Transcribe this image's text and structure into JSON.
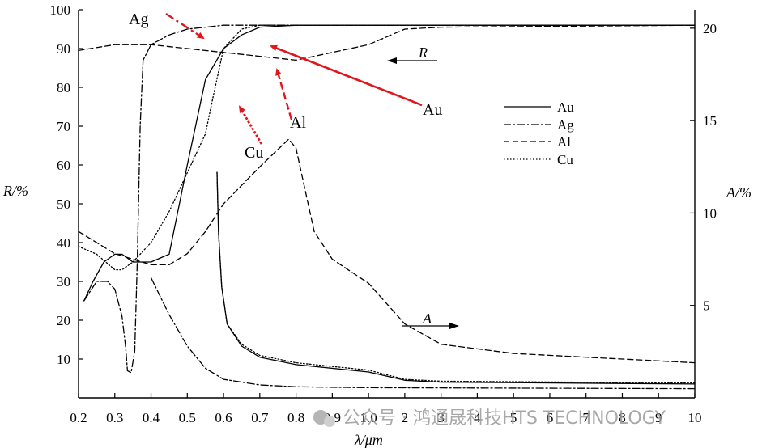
{
  "chart_data": {
    "type": "line",
    "xlabel": "λ/μm",
    "ylabel_left": "R/%",
    "ylabel_right": "A/%",
    "x_ticks": [
      "0.2",
      "0.3",
      "0.4",
      "0.5",
      "0.6",
      "0.7",
      "0.8",
      "0.9",
      "1.0",
      "2",
      "3",
      "4",
      "5",
      "6",
      "7",
      "8",
      "9",
      "10"
    ],
    "y_left_ticks": [
      "10",
      "20",
      "30",
      "40",
      "50",
      "60",
      "70",
      "80",
      "90",
      "100"
    ],
    "y_right_ticks": [
      "5",
      "10",
      "15",
      "20"
    ],
    "ylim_left": [
      0,
      100
    ],
    "ylim_right": [
      0,
      21
    ],
    "legend": {
      "placement": "right",
      "entries": [
        {
          "label": "Au",
          "style": "solid"
        },
        {
          "label": "Ag",
          "style": "dashdot"
        },
        {
          "label": "Al",
          "style": "dashed"
        },
        {
          "label": "Cu",
          "style": "dotted"
        }
      ]
    },
    "inline_labels": {
      "R": "R",
      "A": "A"
    },
    "annotations": [
      {
        "text": "Ag",
        "color": "#e0161d"
      },
      {
        "text": "Au",
        "color": "#e0161d"
      },
      {
        "text": "Al",
        "color": "#e0161d"
      },
      {
        "text": "Cu",
        "color": "#e0161d"
      }
    ],
    "series": [
      {
        "name": "Au",
        "kind": "R",
        "style": "solid",
        "points": [
          [
            0.215,
            25
          ],
          [
            0.24,
            30
          ],
          [
            0.27,
            35
          ],
          [
            0.3,
            37
          ],
          [
            0.32,
            37
          ],
          [
            0.35,
            35
          ],
          [
            0.4,
            35
          ],
          [
            0.45,
            37
          ],
          [
            0.5,
            60
          ],
          [
            0.55,
            82
          ],
          [
            0.6,
            90
          ],
          [
            0.65,
            93.5
          ],
          [
            0.7,
            95.5
          ],
          [
            0.8,
            96
          ],
          [
            1.0,
            96
          ],
          [
            10,
            96
          ]
        ]
      },
      {
        "name": "Ag",
        "kind": "R",
        "style": "dashdot",
        "points": [
          [
            0.215,
            25
          ],
          [
            0.25,
            30
          ],
          [
            0.28,
            30
          ],
          [
            0.3,
            28
          ],
          [
            0.32,
            21
          ],
          [
            0.33,
            13
          ],
          [
            0.335,
            7
          ],
          [
            0.345,
            6.5
          ],
          [
            0.355,
            12
          ],
          [
            0.362,
            35
          ],
          [
            0.37,
            70
          ],
          [
            0.378,
            87
          ],
          [
            0.4,
            91
          ],
          [
            0.45,
            93.5
          ],
          [
            0.5,
            95
          ],
          [
            0.6,
            96
          ],
          [
            0.7,
            96
          ],
          [
            0.8,
            96
          ],
          [
            1.0,
            96
          ],
          [
            10,
            96
          ]
        ]
      },
      {
        "name": "Al",
        "kind": "R",
        "style": "dashed",
        "points": [
          [
            0.2,
            89.5
          ],
          [
            0.3,
            91
          ],
          [
            0.4,
            91
          ],
          [
            0.5,
            90
          ],
          [
            0.6,
            89
          ],
          [
            0.7,
            88
          ],
          [
            0.8,
            87
          ],
          [
            0.9,
            89
          ],
          [
            1.0,
            91
          ],
          [
            2,
            95
          ],
          [
            3,
            95.5
          ],
          [
            10,
            96
          ]
        ]
      },
      {
        "name": "Cu",
        "kind": "R",
        "style": "dotted",
        "points": [
          [
            0.2,
            39
          ],
          [
            0.25,
            37
          ],
          [
            0.3,
            33
          ],
          [
            0.32,
            33
          ],
          [
            0.35,
            35
          ],
          [
            0.4,
            40
          ],
          [
            0.45,
            48
          ],
          [
            0.5,
            58
          ],
          [
            0.55,
            68
          ],
          [
            0.57,
            77
          ],
          [
            0.6,
            90
          ],
          [
            0.65,
            95
          ],
          [
            0.7,
            96
          ],
          [
            1.0,
            96
          ],
          [
            10,
            96
          ]
        ]
      },
      {
        "name": "Al",
        "kind": "A",
        "style": "dashed",
        "points": [
          [
            0.2,
            9
          ],
          [
            0.3,
            7.8
          ],
          [
            0.4,
            7.2
          ],
          [
            0.45,
            7.2
          ],
          [
            0.5,
            7.8
          ],
          [
            0.55,
            9
          ],
          [
            0.6,
            10.5
          ],
          [
            0.7,
            12.5
          ],
          [
            0.78,
            14
          ],
          [
            0.8,
            13.5
          ],
          [
            0.85,
            9
          ],
          [
            0.9,
            7.5
          ],
          [
            1.0,
            6.2
          ],
          [
            2,
            4
          ],
          [
            3,
            2.9
          ],
          [
            5,
            2.4
          ],
          [
            10,
            1.9
          ]
        ]
      },
      {
        "name": "Au",
        "kind": "A",
        "style": "solid",
        "points": [
          [
            0.582,
            12.2
          ],
          [
            0.586,
            9
          ],
          [
            0.595,
            6
          ],
          [
            0.61,
            4
          ],
          [
            0.65,
            2.8
          ],
          [
            0.7,
            2.2
          ],
          [
            0.8,
            1.8
          ],
          [
            1.0,
            1.4
          ],
          [
            2,
            0.95
          ],
          [
            3,
            0.85
          ],
          [
            10,
            0.75
          ]
        ]
      },
      {
        "name": "Cu",
        "kind": "A",
        "style": "dotted",
        "points": [
          [
            0.582,
            12.2
          ],
          [
            0.586,
            9
          ],
          [
            0.595,
            6
          ],
          [
            0.61,
            4
          ],
          [
            0.65,
            2.9
          ],
          [
            0.7,
            2.3
          ],
          [
            0.8,
            1.9
          ],
          [
            1.0,
            1.5
          ],
          [
            2,
            1.0
          ],
          [
            3,
            0.9
          ],
          [
            10,
            0.8
          ]
        ]
      },
      {
        "name": "Ag",
        "kind": "A",
        "style": "dashdot",
        "points": [
          [
            0.4,
            6.5
          ],
          [
            0.45,
            4.5
          ],
          [
            0.5,
            2.8
          ],
          [
            0.55,
            1.6
          ],
          [
            0.6,
            1.0
          ],
          [
            0.7,
            0.7
          ],
          [
            0.8,
            0.6
          ],
          [
            1.0,
            0.55
          ],
          [
            10,
            0.5
          ]
        ]
      }
    ]
  },
  "watermark": {
    "text": "公众号 · 鸿通晟科技HTS TECHNOLOGY"
  }
}
